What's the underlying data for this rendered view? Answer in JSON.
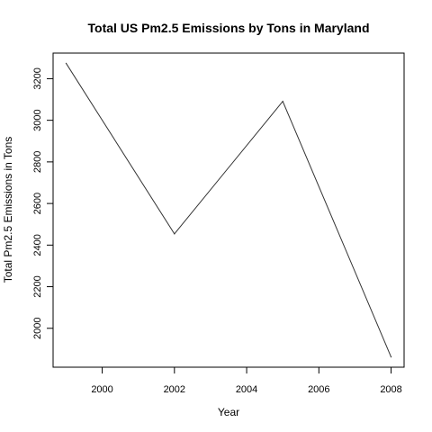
{
  "chart_data": {
    "type": "line",
    "title": "Total US Pm2.5 Emissions by Tons in Maryland",
    "xlabel": "Year",
    "ylabel": "Total Pm2.5 Emissions in Tons",
    "x": [
      1999,
      2002,
      2005,
      2008
    ],
    "series": [
      {
        "values": [
          3274,
          2454,
          3091,
          1862
        ],
        "color": "#333333"
      }
    ],
    "xlim": [
      1998.64,
      2008.36
    ],
    "ylim": [
      1813,
      3323
    ],
    "xticks": [
      2000,
      2002,
      2004,
      2006,
      2008
    ],
    "yticks": [
      2000,
      2200,
      2400,
      2600,
      2800,
      3000,
      3200
    ],
    "grid": false,
    "legend": "none"
  }
}
